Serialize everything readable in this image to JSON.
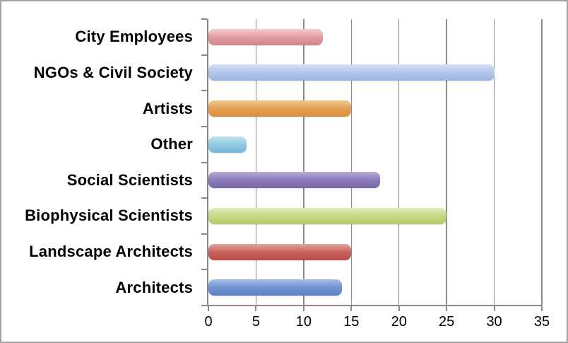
{
  "chart_data": {
    "type": "bar",
    "orientation": "horizontal",
    "title": "",
    "xlabel": "",
    "ylabel": "",
    "categories": [
      "City Employees",
      "NGOs & Civil Society",
      "Artists",
      "Other",
      "Social Scientists",
      "Biophysical Scientists",
      "Landscape Architects",
      "Architects"
    ],
    "values": [
      12,
      30,
      15,
      4,
      18,
      25,
      15,
      14
    ],
    "bar_colors": [
      {
        "light": "#f2c6c8",
        "base": "#e2a0a4",
        "dark": "#d2878c"
      },
      {
        "light": "#d3def4",
        "base": "#b4c7eb",
        "dark": "#9cb4e0"
      },
      {
        "light": "#f0c488",
        "base": "#e5a155",
        "dark": "#d78f3b"
      },
      {
        "light": "#bfe1ee",
        "base": "#90cae2",
        "dark": "#74b7d6"
      },
      {
        "light": "#b3a7d2",
        "base": "#8c7bba",
        "dark": "#7767a4"
      },
      {
        "light": "#dde9b3",
        "base": "#c5d987",
        "dark": "#b2cb66"
      },
      {
        "light": "#dfa09c",
        "base": "#cb625e",
        "dark": "#b54d49"
      },
      {
        "light": "#a3bbe5",
        "base": "#6f94d3",
        "dark": "#5c82c4"
      }
    ],
    "xlim": [
      0,
      35
    ],
    "xticks": [
      0,
      5,
      10,
      15,
      20,
      25,
      30,
      35
    ],
    "grid": true,
    "legend": false
  },
  "style": {
    "grid_color": "#8b8b8b",
    "axis_color": "#888888",
    "frame_border_color": "#a3a3a3",
    "background": "#ffffff",
    "text_color": "#000000"
  }
}
